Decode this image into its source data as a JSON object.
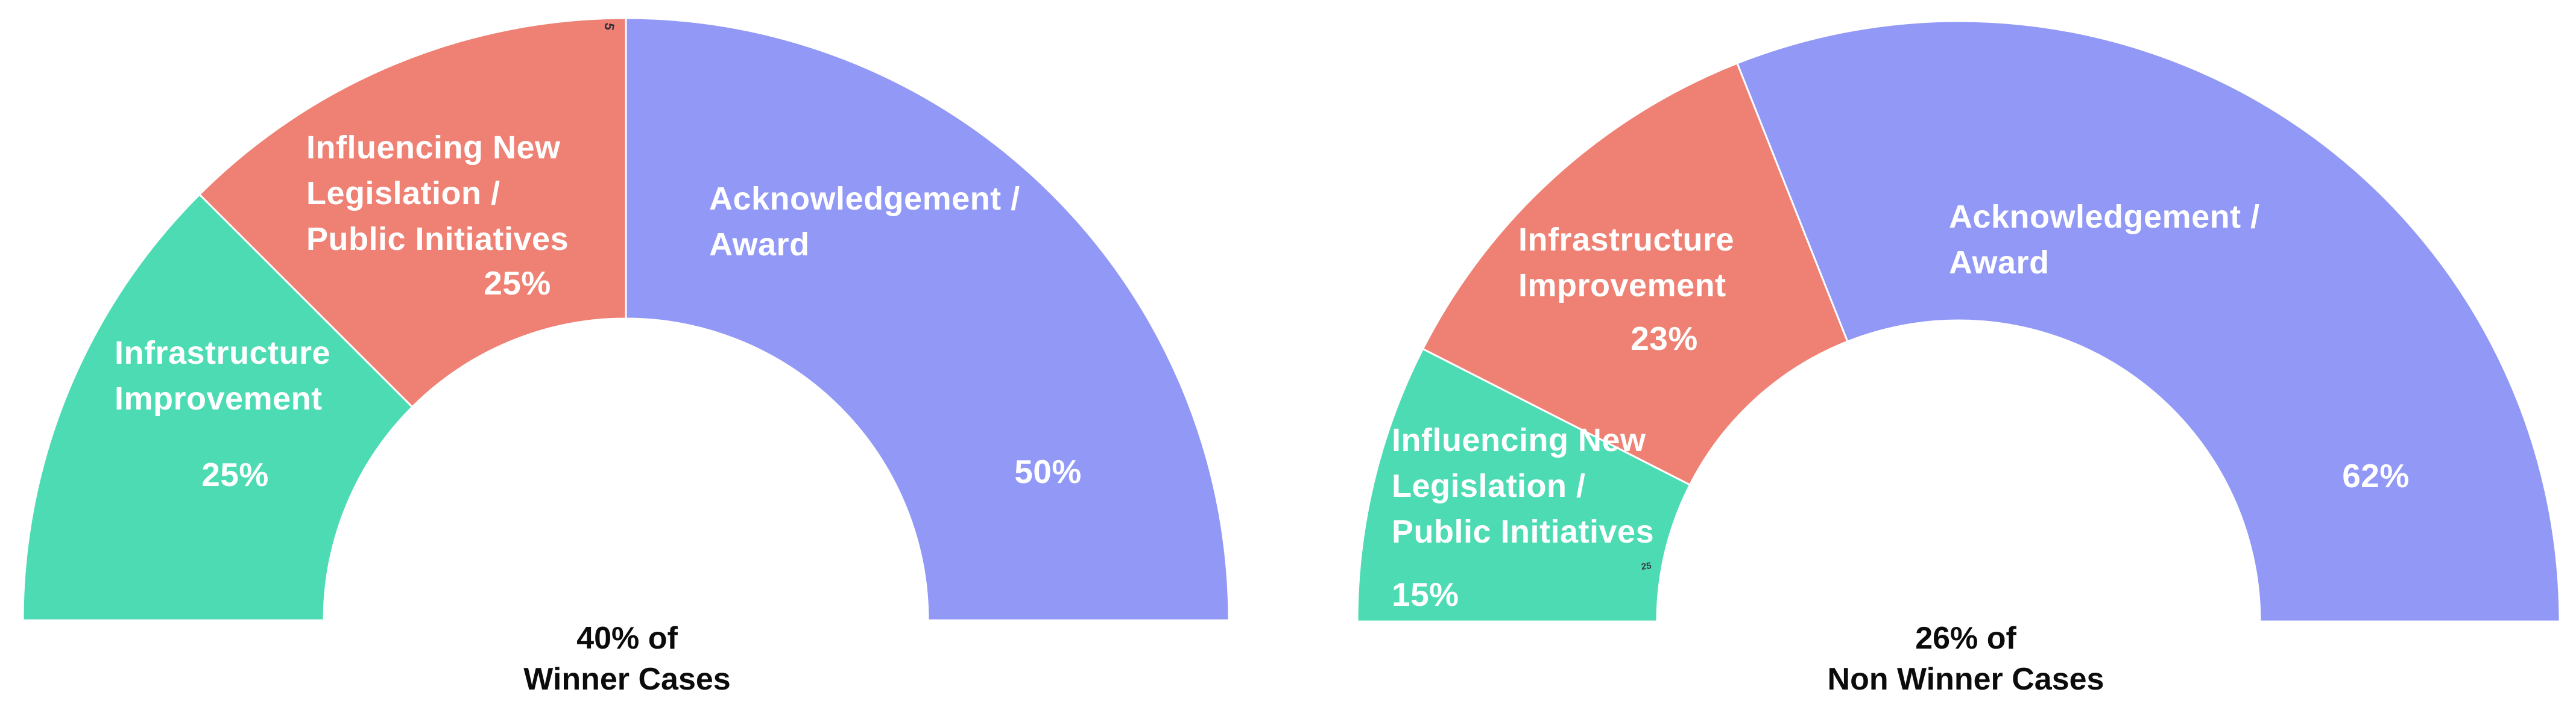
{
  "page": {
    "background": "#ffffff"
  },
  "colors": {
    "green": "#4ddbb3",
    "salmon": "#ee8173",
    "periwinkle": "#9198f6",
    "caption_text": "#0b0b0b",
    "slice_label_text": "#ffffff",
    "slice_divider": "#ffffff"
  },
  "chart_data": [
    {
      "type": "pie",
      "variant": "half-donut",
      "direction": "left-to-right-over-top",
      "caption": "40% of\nWinner Cases",
      "caption_lines": [
        "40% of",
        "Winner Cases"
      ],
      "slices": [
        {
          "label": "Infrastructure Improvement",
          "label_lines": "Infrastructure\nImprovement",
          "value_pct": 25,
          "pct_label": "25%",
          "color_key": "green"
        },
        {
          "label": "Influencing New Legislation / Public Initiatives",
          "label_lines": "Influencing New\nLegislation /\nPublic Initiatives",
          "value_pct": 25,
          "pct_label": "25%",
          "color_key": "salmon"
        },
        {
          "label": "Acknowledgement / Award",
          "label_lines": "Acknowledgement /\nAward",
          "value_pct": 50,
          "pct_label": "50%",
          "color_key": "periwinkle"
        }
      ],
      "stray_mark": "5"
    },
    {
      "type": "pie",
      "variant": "half-donut",
      "direction": "left-to-right-over-top",
      "caption": "26% of\nNon Winner Cases",
      "caption_lines": [
        "26% of",
        "Non Winner Cases"
      ],
      "slices": [
        {
          "label": "Influencing New Legislation / Public Initiatives",
          "label_lines": "Influencing New\nLegislation /\nPublic Initiatives",
          "value_pct": 15,
          "pct_label": "15%",
          "color_key": "green"
        },
        {
          "label": "Infrastructure Improvement",
          "label_lines": "Infrastructure\nImprovement",
          "value_pct": 23,
          "pct_label": "23%",
          "color_key": "salmon"
        },
        {
          "label": "Acknowledgement / Award",
          "label_lines": "Acknowledgement /\nAward",
          "value_pct": 62,
          "pct_label": "62%",
          "color_key": "periwinkle"
        }
      ],
      "stray_mark": "25"
    }
  ]
}
